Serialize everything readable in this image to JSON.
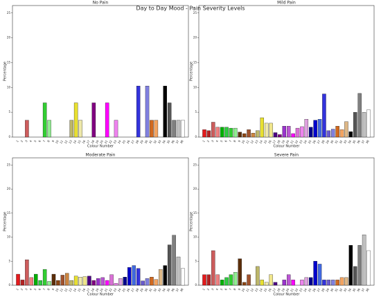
{
  "title": "Day to Day Mood - Pain Severity Levels",
  "chart_data": [
    {
      "type": "bar",
      "title": "No Pain",
      "xlabel": "Colour Number",
      "ylabel": "Percentage",
      "categories": [
        "1",
        "2",
        "3",
        "4",
        "5",
        "6",
        "7",
        "8",
        "9",
        "10",
        "11",
        "12",
        "13",
        "14",
        "15",
        "16",
        "17",
        "18",
        "19",
        "20",
        "21",
        "22",
        "23",
        "24",
        "25",
        "26",
        "27",
        "28",
        "29",
        "30",
        "31",
        "32",
        "33",
        "34",
        "35",
        "36",
        "37",
        "38"
      ],
      "values": [
        0,
        0,
        3.4,
        0,
        0,
        0,
        6.9,
        3.4,
        0,
        0,
        0,
        0,
        3.4,
        6.9,
        3.4,
        0,
        0,
        6.9,
        0,
        0,
        6.9,
        0,
        3.4,
        0,
        0,
        0,
        0,
        10.3,
        0,
        10.3,
        3.4,
        3.4,
        0,
        10.3,
        6.9,
        3.4,
        3.4,
        3.4
      ],
      "colors": [
        "#e41a1c",
        "#b22222",
        "#cd5c5c",
        "#f08080",
        "#00b000",
        "#2ecc40",
        "#32cd32",
        "#90ee90",
        "#5c2e0a",
        "#8b4513",
        "#a0522d",
        "#cd853f",
        "#bdb76b",
        "#e8e030",
        "#eee8aa",
        "#f0e68c",
        "#4b0082",
        "#800080",
        "#9932cc",
        "#ba55d3",
        "#ff00ff",
        "#da70d6",
        "#ee82ee",
        "#dda0dd",
        "#00008b",
        "#0000cd",
        "#4169e1",
        "#3333dd",
        "#6a5acd",
        "#8080e0",
        "#d2691e",
        "#f4a460",
        "#deb887",
        "#000000",
        "#555555",
        "#808080",
        "#c0c0c0",
        "#ffffff"
      ],
      "ylim": [
        0,
        26.5
      ],
      "yticks": [
        0,
        5,
        10,
        15,
        20,
        25
      ]
    },
    {
      "type": "bar",
      "title": "Mild Pain",
      "xlabel": "Colour Number",
      "ylabel": "Percentage",
      "categories": [
        "1",
        "2",
        "3",
        "4",
        "5",
        "6",
        "7",
        "8",
        "9",
        "10",
        "11",
        "12",
        "13",
        "14",
        "15",
        "16",
        "17",
        "18",
        "19",
        "20",
        "21",
        "22",
        "23",
        "24",
        "25",
        "26",
        "27",
        "28",
        "29",
        "30",
        "31",
        "32",
        "33",
        "34",
        "35",
        "36",
        "37",
        "38"
      ],
      "values": [
        1.5,
        1.3,
        3.0,
        2.0,
        2.0,
        2.0,
        1.8,
        1.8,
        1.0,
        0.7,
        1.5,
        0.8,
        1.3,
        3.9,
        2.8,
        2.8,
        0.9,
        0.5,
        2.2,
        2.2,
        0.7,
        1.8,
        2.1,
        3.6,
        2.0,
        3.4,
        3.6,
        8.7,
        1.3,
        1.6,
        2.2,
        1.5,
        3.1,
        1.1,
        5.0,
        8.8,
        5.0,
        5.5
      ],
      "colors": [
        "#e41a1c",
        "#b22222",
        "#cd5c5c",
        "#f08080",
        "#00b000",
        "#2ecc40",
        "#32cd32",
        "#90ee90",
        "#5c2e0a",
        "#8b4513",
        "#a0522d",
        "#cd853f",
        "#bdb76b",
        "#e8e030",
        "#eee8aa",
        "#f0e68c",
        "#4b0082",
        "#800080",
        "#9932cc",
        "#ba55d3",
        "#ff00ff",
        "#da70d6",
        "#ee82ee",
        "#dda0dd",
        "#00008b",
        "#0000cd",
        "#4169e1",
        "#3333dd",
        "#6a5acd",
        "#8080e0",
        "#d2691e",
        "#f4a460",
        "#deb887",
        "#000000",
        "#555555",
        "#808080",
        "#c0c0c0",
        "#ffffff"
      ],
      "ylim": [
        0,
        26.5
      ],
      "yticks": [
        0,
        5,
        10,
        15,
        20,
        25
      ]
    },
    {
      "type": "bar",
      "title": "Moderate Pain",
      "xlabel": "Colour Number",
      "ylabel": "Percentage",
      "categories": [
        "1",
        "2",
        "3",
        "4",
        "5",
        "6",
        "7",
        "8",
        "9",
        "10",
        "11",
        "12",
        "13",
        "14",
        "15",
        "16",
        "17",
        "18",
        "19",
        "20",
        "21",
        "22",
        "23",
        "24",
        "25",
        "26",
        "27",
        "28",
        "29",
        "30",
        "31",
        "32",
        "33",
        "34",
        "35",
        "36",
        "37",
        "38"
      ],
      "values": [
        2.3,
        1.1,
        5.3,
        1.6,
        2.3,
        1.0,
        3.3,
        0.8,
        2.3,
        1.0,
        2.1,
        2.5,
        1.0,
        1.9,
        1.7,
        1.8,
        1.9,
        1.0,
        1.4,
        1.6,
        1.0,
        2.2,
        0.4,
        1.4,
        1.7,
        3.7,
        4.1,
        3.5,
        0.9,
        1.4,
        1.7,
        1.2,
        3.3,
        4.1,
        8.4,
        10.4,
        5.9,
        3.5
      ],
      "colors": [
        "#e41a1c",
        "#b22222",
        "#cd5c5c",
        "#f08080",
        "#00b000",
        "#2ecc40",
        "#32cd32",
        "#90ee90",
        "#5c2e0a",
        "#8b4513",
        "#a0522d",
        "#cd853f",
        "#bdb76b",
        "#e8e030",
        "#eee8aa",
        "#f0e68c",
        "#4b0082",
        "#800080",
        "#9932cc",
        "#ba55d3",
        "#ff00ff",
        "#da70d6",
        "#ee82ee",
        "#dda0dd",
        "#00008b",
        "#0000cd",
        "#4169e1",
        "#3333dd",
        "#6a5acd",
        "#8080e0",
        "#d2691e",
        "#f4a460",
        "#deb887",
        "#000000",
        "#555555",
        "#808080",
        "#c0c0c0",
        "#ffffff"
      ],
      "ylim": [
        0,
        26.5
      ],
      "yticks": [
        0,
        5,
        10,
        15,
        20,
        25
      ]
    },
    {
      "type": "bar",
      "title": "Severe Pain",
      "xlabel": "Colour Number",
      "ylabel": "Percentage",
      "categories": [
        "1",
        "2",
        "3",
        "4",
        "5",
        "6",
        "7",
        "8",
        "9",
        "10",
        "11",
        "12",
        "13",
        "14",
        "15",
        "16",
        "17",
        "18",
        "19",
        "20",
        "21",
        "22",
        "23",
        "24",
        "25",
        "26",
        "27",
        "28",
        "29",
        "30",
        "31",
        "32",
        "33",
        "34",
        "35",
        "36",
        "37",
        "38"
      ],
      "values": [
        2.2,
        2.2,
        7.2,
        2.2,
        1.1,
        1.6,
        2.2,
        2.7,
        5.5,
        0.6,
        2.2,
        0,
        3.9,
        1.1,
        0.6,
        2.2,
        0.6,
        0,
        1.1,
        2.2,
        1.1,
        0,
        1.1,
        1.6,
        1.6,
        5.0,
        4.4,
        1.1,
        1.1,
        1.1,
        1.1,
        1.6,
        1.6,
        8.3,
        3.9,
        8.3,
        10.5,
        7.2
      ],
      "colors": [
        "#e41a1c",
        "#b22222",
        "#cd5c5c",
        "#f08080",
        "#00b000",
        "#2ecc40",
        "#32cd32",
        "#90ee90",
        "#5c2e0a",
        "#8b4513",
        "#a0522d",
        "#cd853f",
        "#bdb76b",
        "#e8e030",
        "#eee8aa",
        "#f0e68c",
        "#4b0082",
        "#800080",
        "#9932cc",
        "#ba55d3",
        "#ff00ff",
        "#da70d6",
        "#ee82ee",
        "#dda0dd",
        "#00008b",
        "#0000cd",
        "#4169e1",
        "#3333dd",
        "#6a5acd",
        "#8080e0",
        "#d2691e",
        "#f4a460",
        "#deb887",
        "#000000",
        "#555555",
        "#808080",
        "#c0c0c0",
        "#ffffff"
      ],
      "ylim": [
        0,
        26.5
      ],
      "yticks": [
        0,
        5,
        10,
        15,
        20,
        25
      ]
    }
  ]
}
